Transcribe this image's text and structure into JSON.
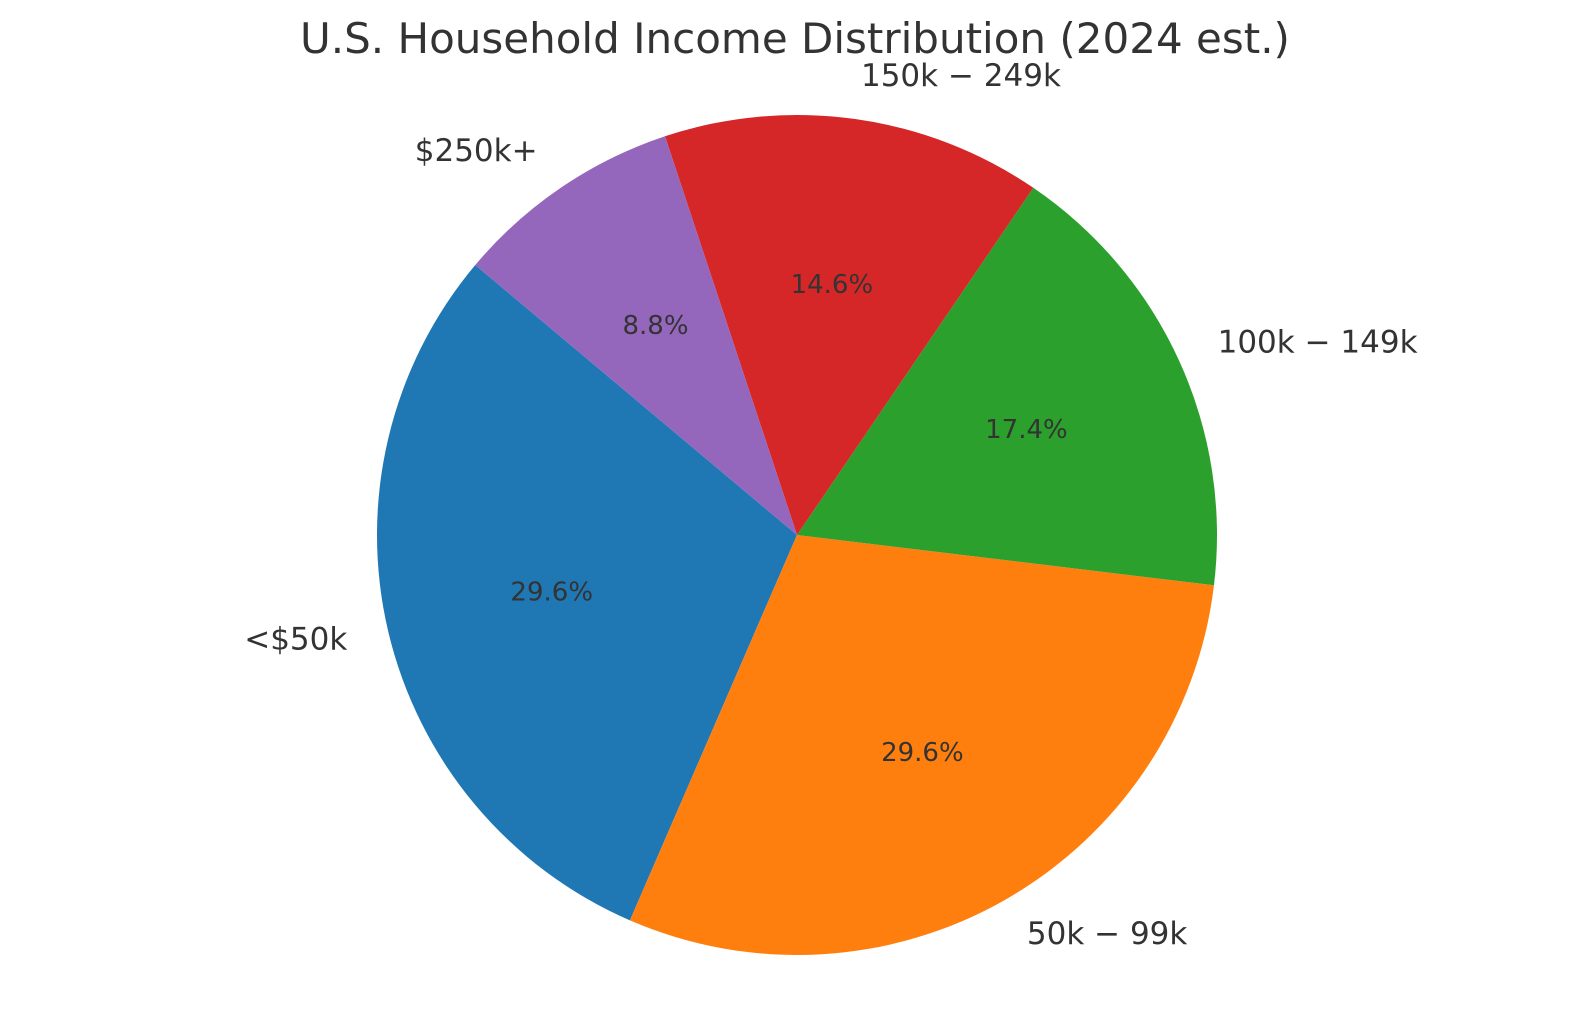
{
  "chart_data": {
    "type": "pie",
    "title": "U.S. Household Income Distribution (2024 est.)",
    "categories": [
      "<$50k",
      "$50k-$99k",
      "$100k-$149k",
      "$150k-$249k",
      "$250k+"
    ],
    "display_labels": [
      "<$50k",
      "50k − 99k",
      "100k − 149k",
      "150k − 249k",
      "$250k+"
    ],
    "values": [
      29.6,
      29.6,
      17.4,
      14.6,
      8.8
    ],
    "pct_labels": [
      "29.6%",
      "29.6%",
      "17.4%",
      "14.6%",
      "8.8%"
    ],
    "colors": [
      "#1f77b4",
      "#ff7f0e",
      "#2ca02c",
      "#d62728",
      "#9467bd"
    ],
    "start_angle_deg": 140,
    "direction": "counterclockwise",
    "legend": "none"
  }
}
